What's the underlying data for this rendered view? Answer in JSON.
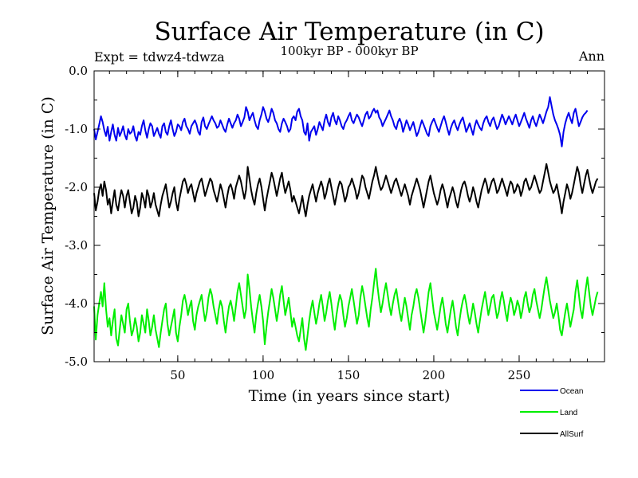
{
  "chart_data": {
    "type": "line",
    "title": "Surface Air Temperature (in C)",
    "subtitle": "100kyr BP - 000kyr BP",
    "expt_label": "Expt = tdwz4-tdwza",
    "season_label": "Ann",
    "xlabel": "Time (in years since start)",
    "ylabel": "Surface Air Temperature (in C)",
    "xlim": [
      1,
      300
    ],
    "ylim": [
      -5.0,
      0.0
    ],
    "x_ticks": [
      50,
      100,
      150,
      200,
      250
    ],
    "x_tick_labels": [
      "50",
      "100",
      "150",
      "200",
      "250"
    ],
    "y_ticks": [
      -5.0,
      -4.0,
      -3.0,
      -2.0,
      -1.0,
      0.0
    ],
    "y_tick_labels": [
      "-5.0",
      "-4.0",
      "-3.0",
      "-2.0",
      "-1.0",
      "0.0"
    ],
    "grid": false,
    "legend_position": "bottom-right",
    "x_step": 1,
    "x_start": 1,
    "series": [
      {
        "name": "Ocean",
        "color": "#0000ee",
        "mean": -0.97,
        "values": [
          -1.0,
          -1.18,
          -1.05,
          -0.92,
          -0.78,
          -0.88,
          -1.02,
          -1.12,
          -0.96,
          -1.2,
          -1.05,
          -0.92,
          -1.1,
          -1.2,
          -0.98,
          -1.12,
          -1.05,
          -0.95,
          -1.1,
          -1.18,
          -1.0,
          -1.08,
          -1.05,
          -0.95,
          -1.12,
          -1.2,
          -1.05,
          -1.1,
          -0.95,
          -0.85,
          -1.02,
          -1.15,
          -1.0,
          -0.9,
          -0.95,
          -1.12,
          -1.05,
          -0.98,
          -1.08,
          -1.15,
          -0.95,
          -0.9,
          -1.05,
          -1.1,
          -0.95,
          -0.85,
          -1.0,
          -1.12,
          -1.05,
          -0.92,
          -0.95,
          -1.02,
          -0.88,
          -0.82,
          -0.95,
          -1.0,
          -1.08,
          -0.95,
          -0.9,
          -0.85,
          -0.92,
          -1.05,
          -1.1,
          -0.88,
          -0.8,
          -0.95,
          -1.0,
          -0.92,
          -0.85,
          -0.78,
          -0.85,
          -0.9,
          -0.98,
          -0.95,
          -0.85,
          -0.92,
          -1.0,
          -1.05,
          -0.92,
          -0.82,
          -0.9,
          -0.98,
          -0.9,
          -0.85,
          -0.75,
          -0.82,
          -0.95,
          -0.88,
          -0.8,
          -0.62,
          -0.7,
          -0.85,
          -0.78,
          -0.72,
          -0.85,
          -0.95,
          -1.0,
          -0.85,
          -0.75,
          -0.62,
          -0.7,
          -0.82,
          -0.88,
          -0.78,
          -0.65,
          -0.72,
          -0.85,
          -0.9,
          -1.0,
          -1.05,
          -0.9,
          -0.82,
          -0.88,
          -0.95,
          -1.05,
          -1.0,
          -0.82,
          -0.78,
          -0.85,
          -0.7,
          -0.65,
          -0.78,
          -0.85,
          -1.05,
          -1.1,
          -0.9,
          -1.2,
          -1.05,
          -1.0,
          -0.95,
          -1.1,
          -1.0,
          -0.88,
          -0.95,
          -1.02,
          -0.85,
          -0.75,
          -0.88,
          -0.95,
          -0.8,
          -0.72,
          -0.85,
          -0.92,
          -0.78,
          -0.85,
          -0.95,
          -1.0,
          -0.9,
          -0.85,
          -0.78,
          -0.72,
          -0.85,
          -0.9,
          -0.82,
          -0.75,
          -0.8,
          -0.88,
          -0.95,
          -0.85,
          -0.75,
          -0.7,
          -0.82,
          -0.78,
          -0.7,
          -0.65,
          -0.72,
          -0.68,
          -0.8,
          -0.85,
          -0.95,
          -0.88,
          -0.82,
          -0.75,
          -0.68,
          -0.78,
          -0.85,
          -0.95,
          -1.0,
          -0.88,
          -0.82,
          -0.9,
          -1.05,
          -0.95,
          -0.85,
          -0.92,
          -1.02,
          -0.95,
          -0.88,
          -1.0,
          -1.12,
          -1.05,
          -0.95,
          -0.85,
          -0.92,
          -1.0,
          -1.08,
          -1.12,
          -0.95,
          -0.88,
          -0.82,
          -0.9,
          -0.98,
          -1.05,
          -0.95,
          -0.85,
          -0.78,
          -0.88,
          -1.0,
          -1.1,
          -0.98,
          -0.9,
          -0.85,
          -0.95,
          -1.02,
          -0.92,
          -0.85,
          -0.8,
          -0.92,
          -1.05,
          -0.98,
          -0.9,
          -1.0,
          -1.1,
          -0.95,
          -0.85,
          -0.92,
          -0.98,
          -1.02,
          -0.9,
          -0.82,
          -0.78,
          -0.88,
          -0.95,
          -0.85,
          -0.8,
          -0.9,
          -1.0,
          -0.95,
          -0.85,
          -0.75,
          -0.82,
          -0.92,
          -0.85,
          -0.78,
          -0.85,
          -0.92,
          -0.82,
          -0.75,
          -0.85,
          -0.95,
          -0.88,
          -0.8,
          -0.72,
          -0.82,
          -0.9,
          -0.98,
          -0.85,
          -0.78,
          -0.88,
          -0.95,
          -0.85,
          -0.75,
          -0.82,
          -0.9,
          -0.8,
          -0.7,
          -0.62,
          -0.45,
          -0.6,
          -0.75,
          -0.85,
          -0.92,
          -1.0,
          -1.1,
          -1.3,
          -1.05,
          -0.9,
          -0.8,
          -0.72,
          -0.82,
          -0.9,
          -0.72,
          -0.65,
          -0.8,
          -0.95,
          -0.88,
          -0.8,
          -0.75,
          -0.72,
          -0.68
        ]
      },
      {
        "name": "Land",
        "color": "#00ee00",
        "mean": -4.2,
        "values": [
          -4.05,
          -4.62,
          -4.2,
          -4.0,
          -3.8,
          -4.05,
          -3.65,
          -4.1,
          -4.4,
          -4.25,
          -4.55,
          -4.3,
          -4.1,
          -4.6,
          -4.72,
          -4.45,
          -4.2,
          -4.35,
          -4.5,
          -4.1,
          -4.0,
          -4.3,
          -4.55,
          -4.45,
          -4.25,
          -4.4,
          -4.65,
          -4.5,
          -4.2,
          -4.35,
          -4.5,
          -4.1,
          -4.3,
          -4.55,
          -4.4,
          -4.2,
          -4.45,
          -4.6,
          -4.75,
          -4.5,
          -4.3,
          -4.1,
          -4.0,
          -4.35,
          -4.55,
          -4.4,
          -4.25,
          -4.1,
          -4.5,
          -4.65,
          -4.4,
          -4.2,
          -3.95,
          -3.85,
          -4.0,
          -4.2,
          -4.05,
          -3.95,
          -4.3,
          -4.45,
          -4.2,
          -4.05,
          -3.95,
          -3.85,
          -4.1,
          -4.3,
          -4.15,
          -3.9,
          -3.75,
          -3.85,
          -4.05,
          -4.2,
          -4.35,
          -4.1,
          -3.95,
          -4.05,
          -4.3,
          -4.5,
          -4.25,
          -4.05,
          -3.95,
          -4.1,
          -4.3,
          -4.05,
          -3.8,
          -3.65,
          -3.85,
          -4.05,
          -4.25,
          -4.1,
          -3.5,
          -3.75,
          -4.05,
          -4.3,
          -4.5,
          -4.2,
          -4.0,
          -3.85,
          -4.05,
          -4.3,
          -4.7,
          -4.4,
          -4.15,
          -3.95,
          -3.75,
          -3.9,
          -4.1,
          -4.3,
          -4.1,
          -3.85,
          -3.7,
          -3.95,
          -4.2,
          -4.05,
          -3.9,
          -4.15,
          -4.4,
          -4.25,
          -4.4,
          -4.55,
          -4.65,
          -4.45,
          -4.25,
          -4.6,
          -4.8,
          -4.55,
          -4.3,
          -4.1,
          -3.95,
          -4.15,
          -4.35,
          -4.2,
          -4.0,
          -3.85,
          -4.05,
          -4.3,
          -4.15,
          -3.95,
          -3.8,
          -4.0,
          -4.25,
          -4.45,
          -4.2,
          -4.0,
          -3.85,
          -3.95,
          -4.2,
          -4.4,
          -4.25,
          -4.05,
          -3.9,
          -3.75,
          -3.95,
          -4.15,
          -4.35,
          -4.2,
          -3.9,
          -3.7,
          -3.85,
          -4.05,
          -4.25,
          -4.4,
          -4.1,
          -3.9,
          -3.65,
          -3.4,
          -3.7,
          -3.95,
          -4.15,
          -4.0,
          -3.8,
          -3.65,
          -3.85,
          -4.05,
          -4.2,
          -4.0,
          -3.85,
          -3.75,
          -3.95,
          -4.15,
          -4.3,
          -4.1,
          -3.9,
          -4.05,
          -4.25,
          -4.45,
          -4.2,
          -4.05,
          -3.85,
          -3.75,
          -3.9,
          -4.1,
          -4.3,
          -4.5,
          -4.3,
          -4.05,
          -3.8,
          -3.65,
          -3.9,
          -4.15,
          -4.3,
          -4.45,
          -4.25,
          -4.05,
          -3.9,
          -4.1,
          -4.35,
          -4.5,
          -4.3,
          -4.1,
          -3.95,
          -4.15,
          -4.4,
          -4.55,
          -4.3,
          -4.1,
          -3.95,
          -3.85,
          -4.0,
          -4.2,
          -4.35,
          -4.2,
          -4.0,
          -4.15,
          -4.35,
          -4.5,
          -4.3,
          -4.1,
          -3.95,
          -3.8,
          -4.0,
          -4.2,
          -4.05,
          -3.9,
          -3.85,
          -4.05,
          -4.25,
          -4.15,
          -3.95,
          -3.8,
          -3.95,
          -4.15,
          -4.3,
          -4.05,
          -3.9,
          -4.0,
          -4.2,
          -4.1,
          -3.95,
          -4.05,
          -4.25,
          -4.1,
          -3.9,
          -3.8,
          -4.0,
          -4.15,
          -4.05,
          -3.85,
          -3.75,
          -3.95,
          -4.1,
          -4.25,
          -4.1,
          -3.9,
          -3.7,
          -3.55,
          -3.75,
          -3.95,
          -4.1,
          -4.25,
          -4.15,
          -4.0,
          -4.2,
          -4.45,
          -4.55,
          -4.35,
          -4.15,
          -4.0,
          -4.2,
          -4.4,
          -4.25,
          -4.1,
          -3.8,
          -3.6,
          -3.85,
          -4.1,
          -4.25,
          -4.0,
          -3.75,
          -3.55,
          -3.8,
          -4.05,
          -4.2,
          -4.05,
          -3.9,
          -3.8
        ]
      },
      {
        "name": "AllSurf",
        "color": "#000000",
        "mean": -2.1,
        "values": [
          -2.1,
          -2.4,
          -2.25,
          -2.05,
          -1.95,
          -2.15,
          -1.9,
          -2.05,
          -2.3,
          -2.2,
          -2.45,
          -2.25,
          -2.05,
          -2.3,
          -2.4,
          -2.2,
          -2.05,
          -2.15,
          -2.35,
          -2.15,
          -2.05,
          -2.25,
          -2.45,
          -2.35,
          -2.15,
          -2.25,
          -2.5,
          -2.35,
          -2.1,
          -2.2,
          -2.35,
          -2.05,
          -2.15,
          -2.35,
          -2.25,
          -2.1,
          -2.3,
          -2.4,
          -2.5,
          -2.3,
          -2.15,
          -2.05,
          -1.95,
          -2.15,
          -2.35,
          -2.25,
          -2.1,
          -2.0,
          -2.25,
          -2.4,
          -2.2,
          -2.05,
          -1.9,
          -1.85,
          -1.95,
          -2.1,
          -2.0,
          -1.95,
          -2.1,
          -2.25,
          -2.1,
          -2.0,
          -1.9,
          -1.85,
          -2.0,
          -2.15,
          -2.05,
          -1.95,
          -1.85,
          -1.9,
          -2.05,
          -2.15,
          -2.25,
          -2.1,
          -1.95,
          -2.05,
          -2.2,
          -2.35,
          -2.15,
          -2.0,
          -1.95,
          -2.05,
          -2.2,
          -2.0,
          -1.9,
          -1.8,
          -1.9,
          -2.05,
          -2.2,
          -2.05,
          -1.65,
          -1.85,
          -2.05,
          -2.2,
          -2.3,
          -2.1,
          -1.95,
          -1.85,
          -2.0,
          -2.2,
          -2.4,
          -2.2,
          -2.05,
          -1.9,
          -1.75,
          -1.85,
          -2.0,
          -2.15,
          -2.0,
          -1.85,
          -1.75,
          -1.95,
          -2.1,
          -2.0,
          -1.9,
          -2.05,
          -2.25,
          -2.15,
          -2.25,
          -2.35,
          -2.45,
          -2.3,
          -2.15,
          -2.35,
          -2.5,
          -2.3,
          -2.15,
          -2.05,
          -1.95,
          -2.1,
          -2.25,
          -2.1,
          -2.0,
          -1.9,
          -2.0,
          -2.2,
          -2.1,
          -1.95,
          -1.85,
          -2.0,
          -2.15,
          -2.3,
          -2.15,
          -2.0,
          -1.9,
          -1.95,
          -2.1,
          -2.25,
          -2.15,
          -2.0,
          -1.95,
          -1.85,
          -1.95,
          -2.05,
          -2.2,
          -2.1,
          -1.95,
          -1.8,
          -1.85,
          -2.0,
          -2.1,
          -2.2,
          -2.05,
          -1.9,
          -1.8,
          -1.65,
          -1.8,
          -1.95,
          -2.05,
          -2.0,
          -1.9,
          -1.8,
          -1.9,
          -2.0,
          -2.1,
          -2.0,
          -1.9,
          -1.85,
          -1.95,
          -2.05,
          -2.15,
          -2.05,
          -1.95,
          -2.05,
          -2.15,
          -2.3,
          -2.15,
          -2.05,
          -1.95,
          -1.85,
          -1.95,
          -2.05,
          -2.2,
          -2.35,
          -2.2,
          -2.05,
          -1.9,
          -1.8,
          -1.95,
          -2.1,
          -2.2,
          -2.3,
          -2.2,
          -2.05,
          -1.95,
          -2.05,
          -2.2,
          -2.35,
          -2.2,
          -2.1,
          -2.0,
          -2.1,
          -2.25,
          -2.35,
          -2.2,
          -2.05,
          -1.95,
          -1.9,
          -2.0,
          -2.15,
          -2.25,
          -2.15,
          -2.0,
          -2.1,
          -2.25,
          -2.35,
          -2.2,
          -2.05,
          -1.95,
          -1.85,
          -1.95,
          -2.1,
          -2.0,
          -1.9,
          -1.85,
          -1.95,
          -2.1,
          -2.05,
          -1.95,
          -1.85,
          -1.95,
          -2.05,
          -2.15,
          -2.0,
          -1.9,
          -1.95,
          -2.1,
          -2.05,
          -1.95,
          -2.0,
          -2.15,
          -2.05,
          -1.9,
          -1.85,
          -1.95,
          -2.05,
          -2.0,
          -1.9,
          -1.8,
          -1.9,
          -2.0,
          -2.1,
          -2.05,
          -1.9,
          -1.75,
          -1.6,
          -1.75,
          -1.9,
          -2.0,
          -2.1,
          -2.05,
          -1.95,
          -2.1,
          -2.25,
          -2.45,
          -2.25,
          -2.1,
          -1.95,
          -2.05,
          -2.2,
          -2.1,
          -1.95,
          -1.8,
          -1.65,
          -1.75,
          -1.95,
          -2.1,
          -1.95,
          -1.8,
          -1.7,
          -1.85,
          -2.0,
          -2.1,
          -2.0,
          -1.9,
          -1.85
        ]
      }
    ]
  }
}
